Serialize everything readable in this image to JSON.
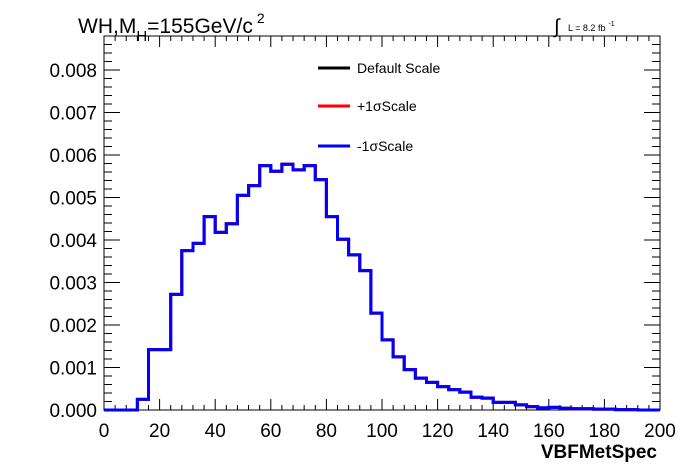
{
  "chart_data": {
    "type": "line",
    "title_main": "WH,M",
    "title_sub": "H",
    "title_rest": "=155GeV/c",
    "title_sup": "2",
    "lumi_label": "L = 8.2 fb",
    "lumi_sup": "-1",
    "xlabel": "VBFMetSpec",
    "xlim": [
      0,
      200
    ],
    "ylim": [
      0,
      0.0088
    ],
    "xticks": [
      "0",
      "20",
      "40",
      "60",
      "80",
      "100",
      "120",
      "140",
      "160",
      "180",
      "200"
    ],
    "yticks": [
      "0.000",
      "0.001",
      "0.002",
      "0.003",
      "0.004",
      "0.005",
      "0.006",
      "0.007",
      "0.008"
    ],
    "legend_position": "top-center",
    "bin_edges": [
      0,
      4,
      8,
      12,
      16,
      20,
      24,
      28,
      32,
      36,
      40,
      44,
      48,
      52,
      56,
      60,
      64,
      68,
      72,
      76,
      80,
      84,
      88,
      92,
      96,
      100,
      104,
      108,
      112,
      116,
      120,
      124,
      128,
      132,
      136,
      140,
      144,
      148,
      152,
      156,
      160,
      164,
      168,
      172,
      176,
      180,
      184,
      188,
      192,
      196,
      200
    ],
    "series": [
      {
        "name": "Default Scale",
        "color": "#000000",
        "values": [
          0,
          0,
          0,
          0.00025,
          0.00142,
          0.00142,
          0.00272,
          0.00375,
          0.00392,
          0.00455,
          0.00418,
          0.00438,
          0.00505,
          0.00528,
          0.00575,
          0.00562,
          0.00578,
          0.00565,
          0.00575,
          0.00542,
          0.00455,
          0.00402,
          0.00365,
          0.00328,
          0.00228,
          0.00165,
          0.00125,
          0.00095,
          0.00075,
          0.00065,
          0.00055,
          0.00048,
          0.00042,
          0.0003,
          0.00028,
          0.00018,
          0.00018,
          0.00012,
          8e-05,
          5e-05,
          6e-05,
          4e-05,
          3e-05,
          3e-05,
          2e-05,
          2e-05,
          1e-05,
          1e-05,
          0,
          0
        ]
      },
      {
        "name": "+1σScale",
        "color": "#ff0000",
        "values": [
          0,
          0,
          0,
          0.00025,
          0.00142,
          0.00142,
          0.00272,
          0.00375,
          0.00392,
          0.00455,
          0.00418,
          0.00438,
          0.00505,
          0.00528,
          0.00575,
          0.00562,
          0.00578,
          0.00565,
          0.00575,
          0.00542,
          0.00455,
          0.00402,
          0.00365,
          0.00328,
          0.00228,
          0.00165,
          0.00125,
          0.00095,
          0.00075,
          0.00065,
          0.00055,
          0.00048,
          0.00042,
          0.0003,
          0.00028,
          0.00018,
          0.00018,
          0.00012,
          8e-05,
          5e-05,
          6e-05,
          4e-05,
          3e-05,
          3e-05,
          2e-05,
          2e-05,
          1e-05,
          1e-05,
          0,
          0
        ]
      },
      {
        "name": "-1σScale",
        "color": "#0000ff",
        "values": [
          0,
          0,
          0,
          0.00025,
          0.00142,
          0.00142,
          0.00272,
          0.00375,
          0.00392,
          0.00455,
          0.00418,
          0.00438,
          0.00505,
          0.00528,
          0.00575,
          0.00562,
          0.00578,
          0.00565,
          0.00575,
          0.00542,
          0.00455,
          0.00402,
          0.00365,
          0.00328,
          0.00228,
          0.00165,
          0.00125,
          0.00095,
          0.00075,
          0.00065,
          0.00055,
          0.00048,
          0.00042,
          0.0003,
          0.00028,
          0.00018,
          0.00018,
          0.00012,
          8e-05,
          5e-05,
          6e-05,
          4e-05,
          3e-05,
          3e-05,
          2e-05,
          2e-05,
          1e-05,
          1e-05,
          0,
          0
        ]
      }
    ]
  }
}
